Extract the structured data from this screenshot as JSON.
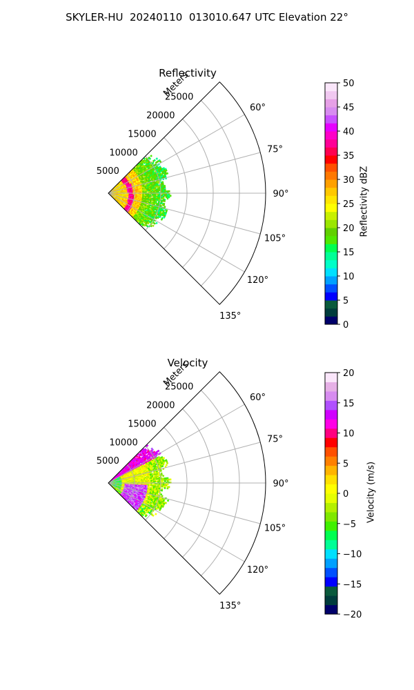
{
  "figure": {
    "title": "SKYLER-HU  20240110  013010.647 UTC Elevation 22°"
  },
  "chart_data": [
    {
      "type": "heatmap",
      "title": "Reflectivity",
      "projection": "polar sector",
      "radial_label": "Meters",
      "radial_ticks": [
        5000,
        10000,
        15000,
        20000,
        25000
      ],
      "radial_tick_labels": [
        "5000",
        "10000",
        "15000",
        "20000",
        "25000"
      ],
      "rmax": 30000,
      "angular_range_deg": [
        45,
        135
      ],
      "angular_ticks": [
        60,
        75,
        90,
        105,
        120,
        135
      ],
      "angular_tick_labels": [
        "60°",
        "75°",
        "90°",
        "105°",
        "120°",
        "135°"
      ],
      "grid": true,
      "data_extent_m": 12000,
      "colorbar": {
        "label": "Reflectivity dBZ",
        "range": [
          0,
          50
        ],
        "ticks": [
          0,
          5,
          10,
          15,
          20,
          25,
          30,
          35,
          40,
          45,
          50
        ],
        "tick_labels": [
          "0",
          "5",
          "10",
          "15",
          "20",
          "25",
          "30",
          "35",
          "40",
          "45",
          "50"
        ]
      }
    },
    {
      "type": "heatmap",
      "title": "Velocity",
      "projection": "polar sector",
      "radial_label": "Meters",
      "radial_ticks": [
        5000,
        10000,
        15000,
        20000,
        25000
      ],
      "radial_tick_labels": [
        "5000",
        "10000",
        "15000",
        "20000",
        "25000"
      ],
      "rmax": 30000,
      "angular_range_deg": [
        45,
        135
      ],
      "angular_ticks": [
        60,
        75,
        90,
        105,
        120,
        135
      ],
      "angular_tick_labels": [
        "60°",
        "75°",
        "90°",
        "105°",
        "120°",
        "135°"
      ],
      "grid": true,
      "data_extent_m": 12000,
      "colorbar": {
        "label": "Velocity (m/s)",
        "range": [
          -20,
          20
        ],
        "ticks": [
          -20,
          -15,
          -10,
          -5,
          0,
          5,
          10,
          15,
          20
        ],
        "tick_labels": [
          "−20",
          "−15",
          "−10",
          "−5",
          "0",
          "5",
          "10",
          "15",
          "20"
        ]
      }
    }
  ]
}
